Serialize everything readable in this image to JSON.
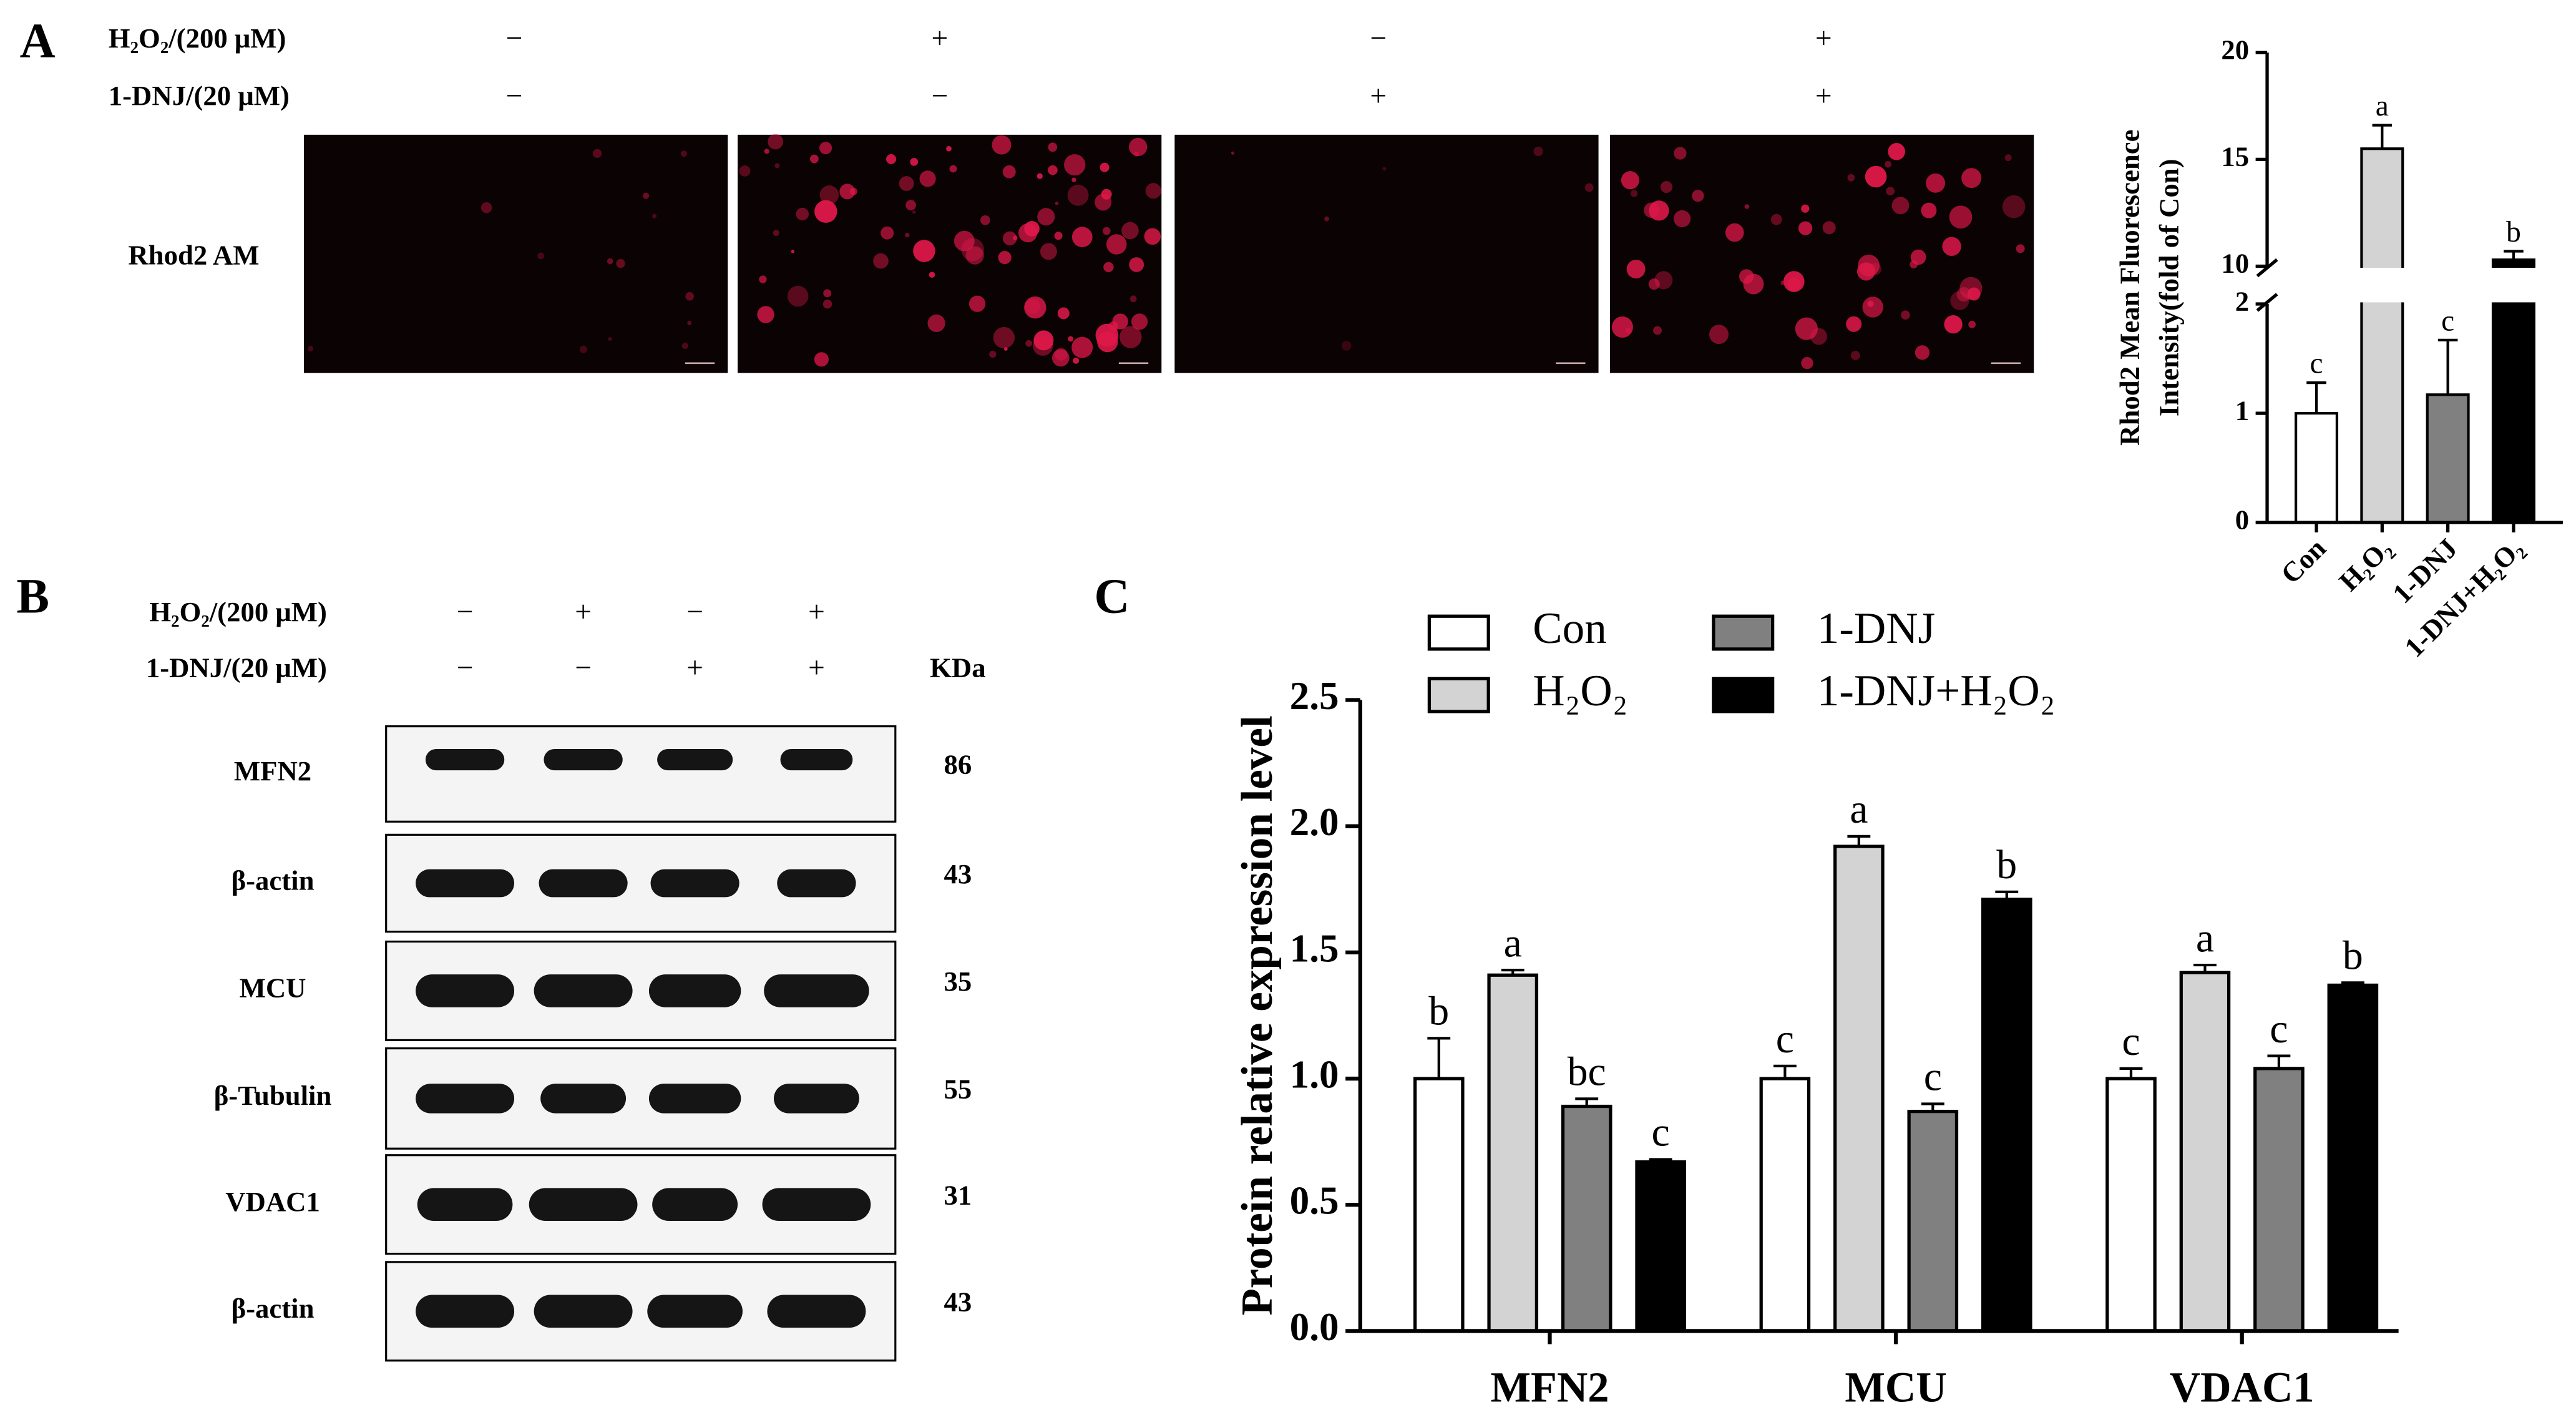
{
  "panel_labels": [
    "A",
    "B",
    "C"
  ],
  "panel_a": {
    "treatments": [
      {
        "label": "H₂O₂/(200 μM)",
        "signs": [
          "−",
          "+",
          "−",
          "+"
        ]
      },
      {
        "label": "1-DNJ/(20 μM)",
        "signs": [
          "−",
          "−",
          "+",
          "+"
        ]
      }
    ],
    "stain": "Rhod2 AM"
  },
  "panel_b": {
    "treatments": [
      {
        "label": "H₂O₂/(200 μM)",
        "signs": [
          "−",
          "+",
          "−",
          "+"
        ]
      },
      {
        "label": "1-DNJ/(20 μM)",
        "signs": [
          "−",
          "−",
          "+",
          "+"
        ]
      }
    ],
    "unit": "KDa",
    "rows": [
      {
        "label": "MFN2",
        "kda": "86"
      },
      {
        "label": "β-actin",
        "kda": "43"
      },
      {
        "label": "MCU",
        "kda": "35"
      },
      {
        "label": "β-Tubulin",
        "kda": "55"
      },
      {
        "label": "VDAC1",
        "kda": "31"
      },
      {
        "label": "β-actin",
        "kda": "43"
      }
    ]
  },
  "chart_data": [
    {
      "type": "bar",
      "ylabel": [
        "Rhod2 Mean Fluorescence",
        "Intensity(fold of Con)"
      ],
      "categories": [
        "Con",
        "H₂O₂",
        "1-DNJ",
        "1-DNJ+H₂O₂"
      ],
      "values": [
        1.0,
        15.5,
        1.17,
        10.3
      ],
      "errors": [
        0.28,
        1.1,
        0.5,
        0.4
      ],
      "annotations": [
        "c",
        "a",
        "c",
        "b"
      ],
      "colors": [
        "#ffffff",
        "#d3d3d3",
        "#808080",
        "#000000"
      ],
      "ylim": [
        0,
        20
      ],
      "axis_break": [
        2,
        10
      ],
      "yticks": [
        0,
        1,
        2,
        10,
        15,
        20
      ]
    },
    {
      "type": "grouped_bar",
      "ylabel": "Protein relative expression level",
      "categories": [
        "MFN2",
        "MCU",
        "VDAC1"
      ],
      "series": [
        {
          "name": "Con",
          "color": "#ffffff",
          "values": [
            1.0,
            1.0,
            1.0
          ],
          "errors": [
            0.16,
            0.05,
            0.04
          ],
          "annotations": [
            "b",
            "c",
            "c"
          ]
        },
        {
          "name": "H₂O₂",
          "color": "#d3d3d3",
          "values": [
            1.41,
            1.92,
            1.42
          ],
          "errors": [
            0.02,
            0.04,
            0.03
          ],
          "annotations": [
            "a",
            "a",
            "a"
          ]
        },
        {
          "name": "1-DNJ",
          "color": "#808080",
          "values": [
            0.89,
            0.87,
            1.04
          ],
          "errors": [
            0.03,
            0.03,
            0.05
          ],
          "annotations": [
            "bc",
            "c",
            "c"
          ]
        },
        {
          "name": "1-DNJ+H₂O₂",
          "color": "#000000",
          "values": [
            0.67,
            1.71,
            1.37
          ],
          "errors": [
            0.01,
            0.03,
            0.01
          ],
          "annotations": [
            "c",
            "b",
            "b"
          ]
        }
      ],
      "ylim": [
        0,
        2.5
      ],
      "yticks": [
        {
          "value": 0,
          "label": "0.0"
        },
        0.5,
        {
          "value": 1,
          "label": "1.0"
        },
        1.5,
        {
          "value": 2,
          "label": "2.0"
        },
        2.5
      ]
    }
  ]
}
